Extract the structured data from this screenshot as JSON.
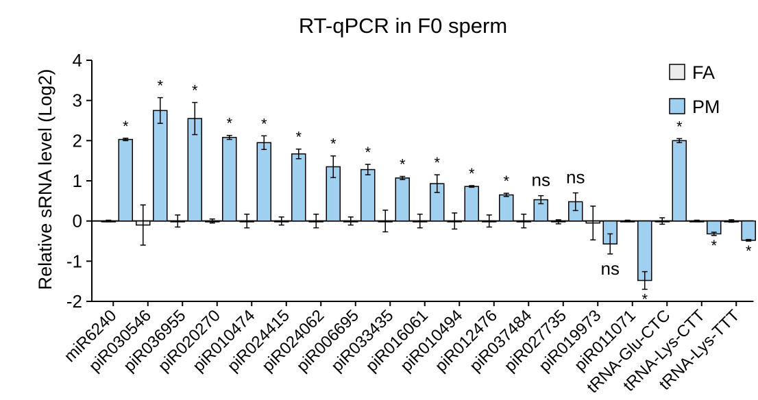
{
  "chart_data": {
    "type": "bar",
    "title": "RT-qPCR in F0 sperm",
    "xlabel": "",
    "ylabel": "Relative sRNA level (Log2)",
    "ylim": [
      -2,
      4
    ],
    "yticks": [
      -2,
      -1,
      0,
      1,
      2,
      3,
      4
    ],
    "ytick_labels": [
      "-2",
      "-1",
      "0",
      "1",
      "2",
      "3",
      "4"
    ],
    "grid": false,
    "legend_position": "top-right",
    "categories": [
      "miR6240",
      "piR030546",
      "piR036955",
      "piR020270",
      "piR010474",
      "piR024415",
      "piR024062",
      "piR006695",
      "piR033435",
      "piR016061",
      "piR010494",
      "piR012476",
      "piR037484",
      "piR027735",
      "piR019973",
      "piR011071",
      "tRNA-Glu-CTC",
      "tRNA-Lys-CTT",
      "tRNA-Lys-TTT"
    ],
    "series": [
      {
        "name": "FA",
        "color": "#ececec",
        "values": [
          0,
          -0.1,
          0,
          0,
          0,
          0,
          0,
          0,
          0,
          0,
          0,
          0,
          0,
          -0.02,
          -0.05,
          0,
          0,
          0,
          0
        ],
        "errors": [
          0.02,
          0.5,
          0.15,
          0.05,
          0.17,
          0.1,
          0.17,
          0.1,
          0.27,
          0.17,
          0.2,
          0.15,
          0.17,
          0.05,
          0.42,
          0.02,
          0.08,
          0.02,
          0.03
        ]
      },
      {
        "name": "PM",
        "color": "#9fd0ef",
        "values": [
          2.03,
          2.75,
          2.55,
          2.08,
          1.95,
          1.67,
          1.35,
          1.28,
          1.07,
          0.93,
          0.86,
          0.65,
          0.53,
          0.48,
          -0.57,
          -1.48,
          2.0,
          -0.32,
          -0.48
        ],
        "errors": [
          0.03,
          0.32,
          0.4,
          0.05,
          0.17,
          0.12,
          0.27,
          0.13,
          0.04,
          0.22,
          0.02,
          0.04,
          0.1,
          0.22,
          0.25,
          0.22,
          0.05,
          0.04,
          0.02
        ]
      }
    ],
    "significance": [
      "*",
      "*",
      "*",
      "*",
      "*",
      "*",
      "*",
      "*",
      "*",
      "*",
      "*",
      "*",
      "ns",
      "ns",
      "ns",
      "*",
      "*",
      "*",
      "*"
    ]
  },
  "colors": {
    "axis": "#000000",
    "fa_fill": "#ececec",
    "pm_fill": "#9fd0ef"
  }
}
